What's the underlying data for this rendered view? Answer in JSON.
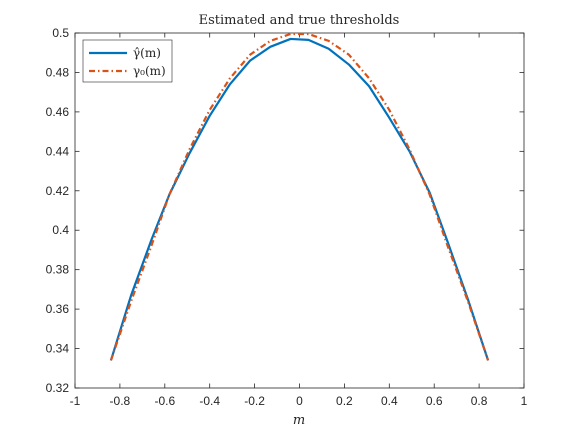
{
  "chart_data": {
    "type": "line",
    "title": "Estimated and true thresholds",
    "xlabel": "m",
    "ylabel": "",
    "xlim": [
      -1,
      1
    ],
    "ylim": [
      0.32,
      0.5
    ],
    "xticks": [
      "-1",
      "-0.8",
      "-0.6",
      "-0.4",
      "-0.2",
      "0",
      "0.2",
      "0.4",
      "0.6",
      "0.8",
      "1"
    ],
    "xtick_values": [
      -1,
      -0.8,
      -0.6,
      -0.4,
      -0.2,
      0,
      0.2,
      0.4,
      0.6,
      0.8,
      1
    ],
    "yticks": [
      "0.32",
      "0.34",
      "0.36",
      "0.38",
      "0.4",
      "0.42",
      "0.44",
      "0.46",
      "0.48",
      "0.5"
    ],
    "ytick_values": [
      0.32,
      0.34,
      0.36,
      0.38,
      0.4,
      0.42,
      0.44,
      0.46,
      0.48,
      0.5
    ],
    "grid": false,
    "legend_position": "top-left",
    "series": [
      {
        "name": "γ̂(m)",
        "color": "#0072BD",
        "style": "solid",
        "x": [
          -0.84,
          -0.75,
          -0.66,
          -0.58,
          -0.49,
          -0.4,
          -0.31,
          -0.22,
          -0.13,
          -0.04,
          0.04,
          0.13,
          0.22,
          0.31,
          0.4,
          0.49,
          0.58,
          0.66,
          0.75,
          0.84
        ],
        "y": [
          0.334,
          0.367,
          0.395,
          0.418,
          0.439,
          0.458,
          0.474,
          0.486,
          0.493,
          0.497,
          0.4965,
          0.492,
          0.484,
          0.473,
          0.457,
          0.44,
          0.419,
          0.394,
          0.365,
          0.334
        ]
      },
      {
        "name": "γ₀(m)",
        "color": "#D95319",
        "style": "dash-dot",
        "x": [
          -0.84,
          -0.75,
          -0.66,
          -0.58,
          -0.49,
          -0.4,
          -0.31,
          -0.22,
          -0.13,
          -0.04,
          0.04,
          0.13,
          0.22,
          0.31,
          0.4,
          0.49,
          0.58,
          0.66,
          0.75,
          0.84
        ],
        "y": [
          0.334,
          0.364,
          0.392,
          0.418,
          0.441,
          0.461,
          0.477,
          0.489,
          0.496,
          0.4995,
          0.4995,
          0.496,
          0.489,
          0.477,
          0.461,
          0.441,
          0.418,
          0.392,
          0.364,
          0.334
        ]
      }
    ]
  }
}
